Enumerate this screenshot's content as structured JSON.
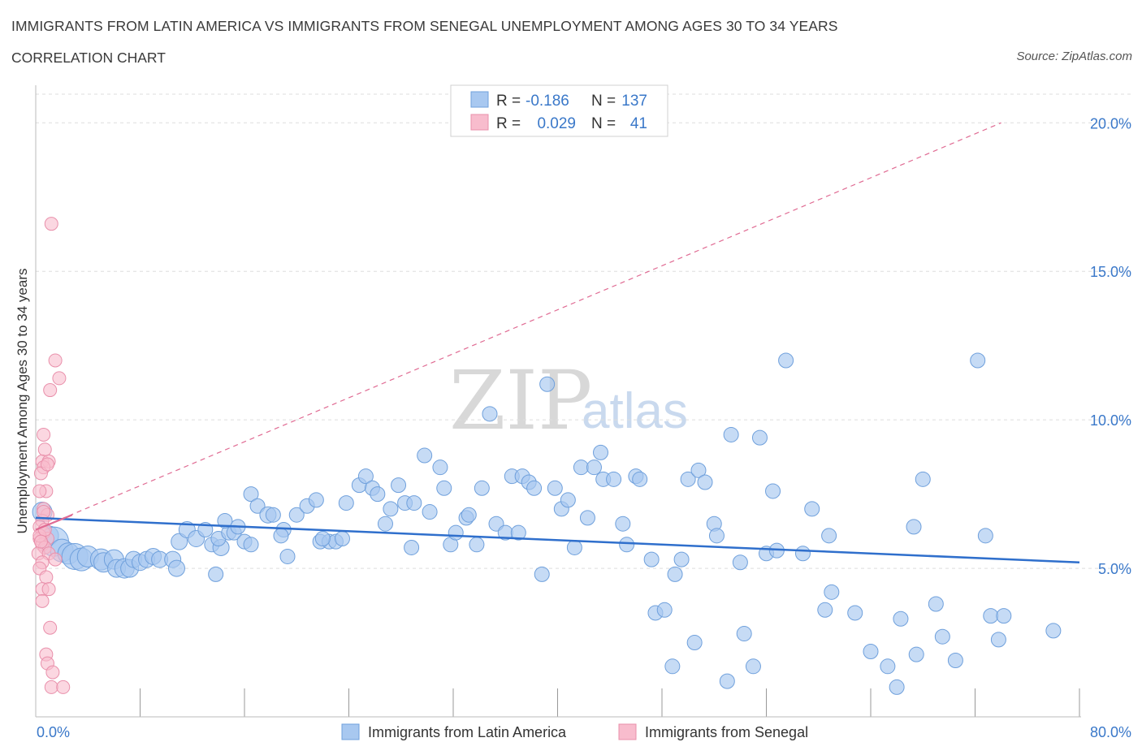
{
  "header": {
    "title": "IMMIGRANTS FROM LATIN AMERICA VS IMMIGRANTS FROM SENEGAL UNEMPLOYMENT AMONG AGES 30 TO 34 YEARS",
    "subtitle": "CORRELATION CHART",
    "source": "Source: ZipAtlas.com"
  },
  "watermark": {
    "zip": "ZIP",
    "atlas": "atlas"
  },
  "stats": {
    "series1": {
      "r_label": "R =",
      "r_value": "-0.186",
      "n_label": "N =",
      "n_value": "137"
    },
    "series2": {
      "r_label": "R =",
      "r_value": "0.029",
      "n_label": "N =",
      "n_value": "41"
    }
  },
  "colors": {
    "blue_fill": "#a8c8f0",
    "blue_stroke": "#6fa0dc",
    "blue_line": "#2f6fcc",
    "pink_fill": "#f8bccd",
    "pink_stroke": "#e990ab",
    "pink_line": "#e06b93",
    "grid": "#dddddd",
    "tick_text": "#3a78c9"
  },
  "chart_data": {
    "type": "scatter",
    "title": "IMMIGRANTS FROM LATIN AMERICA VS IMMIGRANTS FROM SENEGAL UNEMPLOYMENT AMONG AGES 30 TO 34 YEARS",
    "xlabel": "",
    "ylabel": "Unemployment Among Ages 30 to 34 years",
    "xlim": [
      0,
      80
    ],
    "ylim": [
      0,
      20.5
    ],
    "x_tick_labels": [
      "0.0%",
      "80.0%"
    ],
    "y_ticks": [
      5,
      10,
      15,
      20
    ],
    "y_tick_labels": [
      "5.0%",
      "10.0%",
      "15.0%",
      "20.0%"
    ],
    "grid": true,
    "legend_position": "bottom-center",
    "series": [
      {
        "name": "Immigrants from Latin America",
        "color": "#a8c8f0",
        "trend": {
          "x": [
            0,
            80
          ],
          "y": [
            6.7,
            5.2
          ]
        },
        "points": [
          [
            0.5,
            6.9,
            12
          ],
          [
            1.0,
            6.1,
            12
          ],
          [
            1.4,
            5.9,
            18
          ],
          [
            2.0,
            5.6,
            14
          ],
          [
            2.5,
            5.5,
            13
          ],
          [
            3.0,
            5.4,
            16
          ],
          [
            3.5,
            5.3,
            14
          ],
          [
            4.0,
            5.4,
            13
          ],
          [
            5.0,
            5.3,
            13
          ],
          [
            5.2,
            5.2,
            12
          ],
          [
            6.0,
            5.3,
            12
          ],
          [
            6.2,
            5.0,
            11
          ],
          [
            6.8,
            5.0,
            12
          ],
          [
            7.2,
            5.0,
            11
          ],
          [
            7.5,
            5.3,
            10
          ],
          [
            8.0,
            5.2,
            10
          ],
          [
            8.5,
            5.3,
            10
          ],
          [
            9.0,
            5.4,
            10
          ],
          [
            9.5,
            5.3,
            10
          ],
          [
            10.5,
            5.3,
            10
          ],
          [
            10.8,
            5.0,
            10
          ],
          [
            11.0,
            5.9,
            10
          ],
          [
            11.6,
            6.3,
            10
          ],
          [
            12.3,
            6.0,
            10
          ],
          [
            13.0,
            6.3,
            9
          ],
          [
            13.5,
            5.8,
            9
          ],
          [
            14.2,
            5.7,
            10
          ],
          [
            14.0,
            6.0,
            9
          ],
          [
            14.8,
            6.2,
            9
          ],
          [
            13.8,
            4.8,
            9
          ],
          [
            14.5,
            6.6,
            9
          ],
          [
            15.2,
            6.2,
            9
          ],
          [
            15.5,
            6.4,
            9
          ],
          [
            16.0,
            5.9,
            9
          ],
          [
            16.5,
            5.8,
            9
          ],
          [
            16.5,
            7.5,
            9
          ],
          [
            17.0,
            7.1,
            9
          ],
          [
            17.8,
            6.8,
            10
          ],
          [
            18.2,
            6.8,
            9
          ],
          [
            19.0,
            6.3,
            9
          ],
          [
            18.8,
            6.1,
            9
          ],
          [
            19.3,
            5.4,
            9
          ],
          [
            20.0,
            6.8,
            9
          ],
          [
            20.8,
            7.1,
            9
          ],
          [
            21.5,
            7.3,
            9
          ],
          [
            21.8,
            5.9,
            9
          ],
          [
            22.5,
            5.9,
            9
          ],
          [
            23.0,
            5.9,
            9
          ],
          [
            22.0,
            6.0,
            9
          ],
          [
            23.5,
            6.0,
            9
          ],
          [
            23.8,
            7.2,
            9
          ],
          [
            24.8,
            7.8,
            9
          ],
          [
            25.3,
            8.1,
            9
          ],
          [
            25.8,
            7.7,
            9
          ],
          [
            26.2,
            7.5,
            9
          ],
          [
            26.8,
            6.5,
            9
          ],
          [
            27.2,
            7.0,
            9
          ],
          [
            27.8,
            7.8,
            9
          ],
          [
            28.3,
            7.2,
            9
          ],
          [
            28.8,
            5.7,
            9
          ],
          [
            29.0,
            7.2,
            9
          ],
          [
            29.8,
            8.8,
            9
          ],
          [
            30.2,
            6.9,
            9
          ],
          [
            31.0,
            8.4,
            9
          ],
          [
            31.3,
            7.7,
            9
          ],
          [
            31.8,
            5.8,
            9
          ],
          [
            32.2,
            6.2,
            9
          ],
          [
            33.0,
            6.7,
            9
          ],
          [
            33.2,
            6.8,
            9
          ],
          [
            33.8,
            5.8,
            9
          ],
          [
            34.2,
            7.7,
            9
          ],
          [
            34.8,
            10.2,
            9
          ],
          [
            35.3,
            6.5,
            9
          ],
          [
            36.0,
            6.2,
            9
          ],
          [
            36.5,
            8.1,
            9
          ],
          [
            37.0,
            6.2,
            9
          ],
          [
            37.3,
            8.1,
            9
          ],
          [
            37.8,
            7.9,
            9
          ],
          [
            38.2,
            7.7,
            9
          ],
          [
            38.8,
            4.8,
            9
          ],
          [
            39.2,
            11.2,
            9
          ],
          [
            39.8,
            7.7,
            9
          ],
          [
            40.3,
            7.0,
            9
          ],
          [
            40.8,
            7.3,
            9
          ],
          [
            41.3,
            5.7,
            9
          ],
          [
            41.8,
            8.4,
            9
          ],
          [
            42.3,
            6.7,
            9
          ],
          [
            42.8,
            8.4,
            9
          ],
          [
            43.3,
            8.9,
            9
          ],
          [
            43.5,
            8.0,
            9
          ],
          [
            44.3,
            8.0,
            9
          ],
          [
            45.0,
            6.5,
            9
          ],
          [
            45.3,
            5.8,
            9
          ],
          [
            46.0,
            8.1,
            9
          ],
          [
            46.3,
            8.0,
            9
          ],
          [
            47.2,
            5.3,
            9
          ],
          [
            47.5,
            3.5,
            9
          ],
          [
            48.2,
            3.6,
            9
          ],
          [
            48.8,
            1.7,
            9
          ],
          [
            49.0,
            4.8,
            9
          ],
          [
            49.5,
            5.3,
            9
          ],
          [
            50.0,
            8.0,
            9
          ],
          [
            50.5,
            2.5,
            9
          ],
          [
            50.8,
            8.3,
            9
          ],
          [
            51.3,
            7.9,
            9
          ],
          [
            52.0,
            6.5,
            9
          ],
          [
            52.2,
            6.1,
            9
          ],
          [
            53.0,
            1.2,
            9
          ],
          [
            53.3,
            9.5,
            9
          ],
          [
            54.0,
            5.2,
            9
          ],
          [
            54.3,
            2.8,
            9
          ],
          [
            55.0,
            1.7,
            9
          ],
          [
            55.5,
            9.4,
            9
          ],
          [
            56.0,
            5.5,
            9
          ],
          [
            56.5,
            7.6,
            9
          ],
          [
            56.8,
            5.6,
            9
          ],
          [
            57.5,
            12.0,
            9
          ],
          [
            58.8,
            5.5,
            9
          ],
          [
            59.5,
            7.0,
            9
          ],
          [
            60.5,
            3.6,
            9
          ],
          [
            60.8,
            6.1,
            9
          ],
          [
            61.0,
            4.2,
            9
          ],
          [
            62.8,
            3.5,
            9
          ],
          [
            64.0,
            2.2,
            9
          ],
          [
            65.3,
            1.7,
            9
          ],
          [
            66.0,
            1.0,
            9
          ],
          [
            66.3,
            3.3,
            9
          ],
          [
            67.3,
            6.4,
            9
          ],
          [
            67.5,
            2.1,
            9
          ],
          [
            68.0,
            8.0,
            9
          ],
          [
            69.0,
            3.8,
            9
          ],
          [
            69.5,
            2.7,
            9
          ],
          [
            70.5,
            1.9,
            9
          ],
          [
            72.2,
            12.0,
            9
          ],
          [
            72.8,
            6.1,
            9
          ],
          [
            73.2,
            3.4,
            9
          ],
          [
            73.8,
            2.6,
            9
          ],
          [
            74.2,
            3.4,
            9
          ],
          [
            78.0,
            2.9,
            9
          ]
        ]
      },
      {
        "name": "Immigrants from Senegal",
        "color": "#f8bccd",
        "trend": {
          "x": [
            0,
            74
          ],
          "y": [
            6.3,
            20.0
          ]
        },
        "trend_solid": {
          "x": [
            0,
            2.8
          ],
          "y": [
            6.3,
            6.8
          ]
        },
        "points": [
          [
            1.2,
            16.6,
            8
          ],
          [
            1.5,
            12.0,
            8
          ],
          [
            1.8,
            11.4,
            8
          ],
          [
            1.1,
            11.0,
            8
          ],
          [
            0.6,
            9.5,
            8
          ],
          [
            0.7,
            9.0,
            8
          ],
          [
            0.5,
            8.6,
            8
          ],
          [
            1.0,
            8.6,
            8
          ],
          [
            0.6,
            8.4,
            8
          ],
          [
            0.4,
            8.2,
            8
          ],
          [
            0.8,
            7.6,
            8
          ],
          [
            0.3,
            7.6,
            8
          ],
          [
            0.6,
            7.0,
            8
          ],
          [
            0.9,
            6.8,
            8
          ],
          [
            0.5,
            6.6,
            8
          ],
          [
            0.3,
            6.4,
            8
          ],
          [
            0.6,
            6.2,
            8
          ],
          [
            0.9,
            6.0,
            8
          ],
          [
            0.3,
            6.0,
            8
          ],
          [
            0.5,
            5.8,
            8
          ],
          [
            0.7,
            5.7,
            8
          ],
          [
            0.2,
            5.5,
            8
          ],
          [
            1.0,
            5.5,
            8
          ],
          [
            0.5,
            5.2,
            8
          ],
          [
            0.3,
            5.0,
            8
          ],
          [
            0.8,
            4.7,
            8
          ],
          [
            0.5,
            4.3,
            8
          ],
          [
            1.0,
            4.3,
            8
          ],
          [
            0.5,
            3.9,
            8
          ],
          [
            1.1,
            3.0,
            8
          ],
          [
            0.8,
            2.1,
            8
          ],
          [
            0.9,
            1.8,
            8
          ],
          [
            1.3,
            1.5,
            8
          ],
          [
            1.2,
            1.0,
            8
          ],
          [
            2.1,
            1.0,
            8
          ],
          [
            0.3,
            6.1,
            8
          ],
          [
            0.7,
            6.3,
            8
          ],
          [
            0.4,
            5.9,
            8
          ],
          [
            1.5,
            5.3,
            8
          ],
          [
            0.9,
            8.5,
            8
          ],
          [
            0.6,
            6.9,
            8
          ]
        ]
      }
    ]
  }
}
